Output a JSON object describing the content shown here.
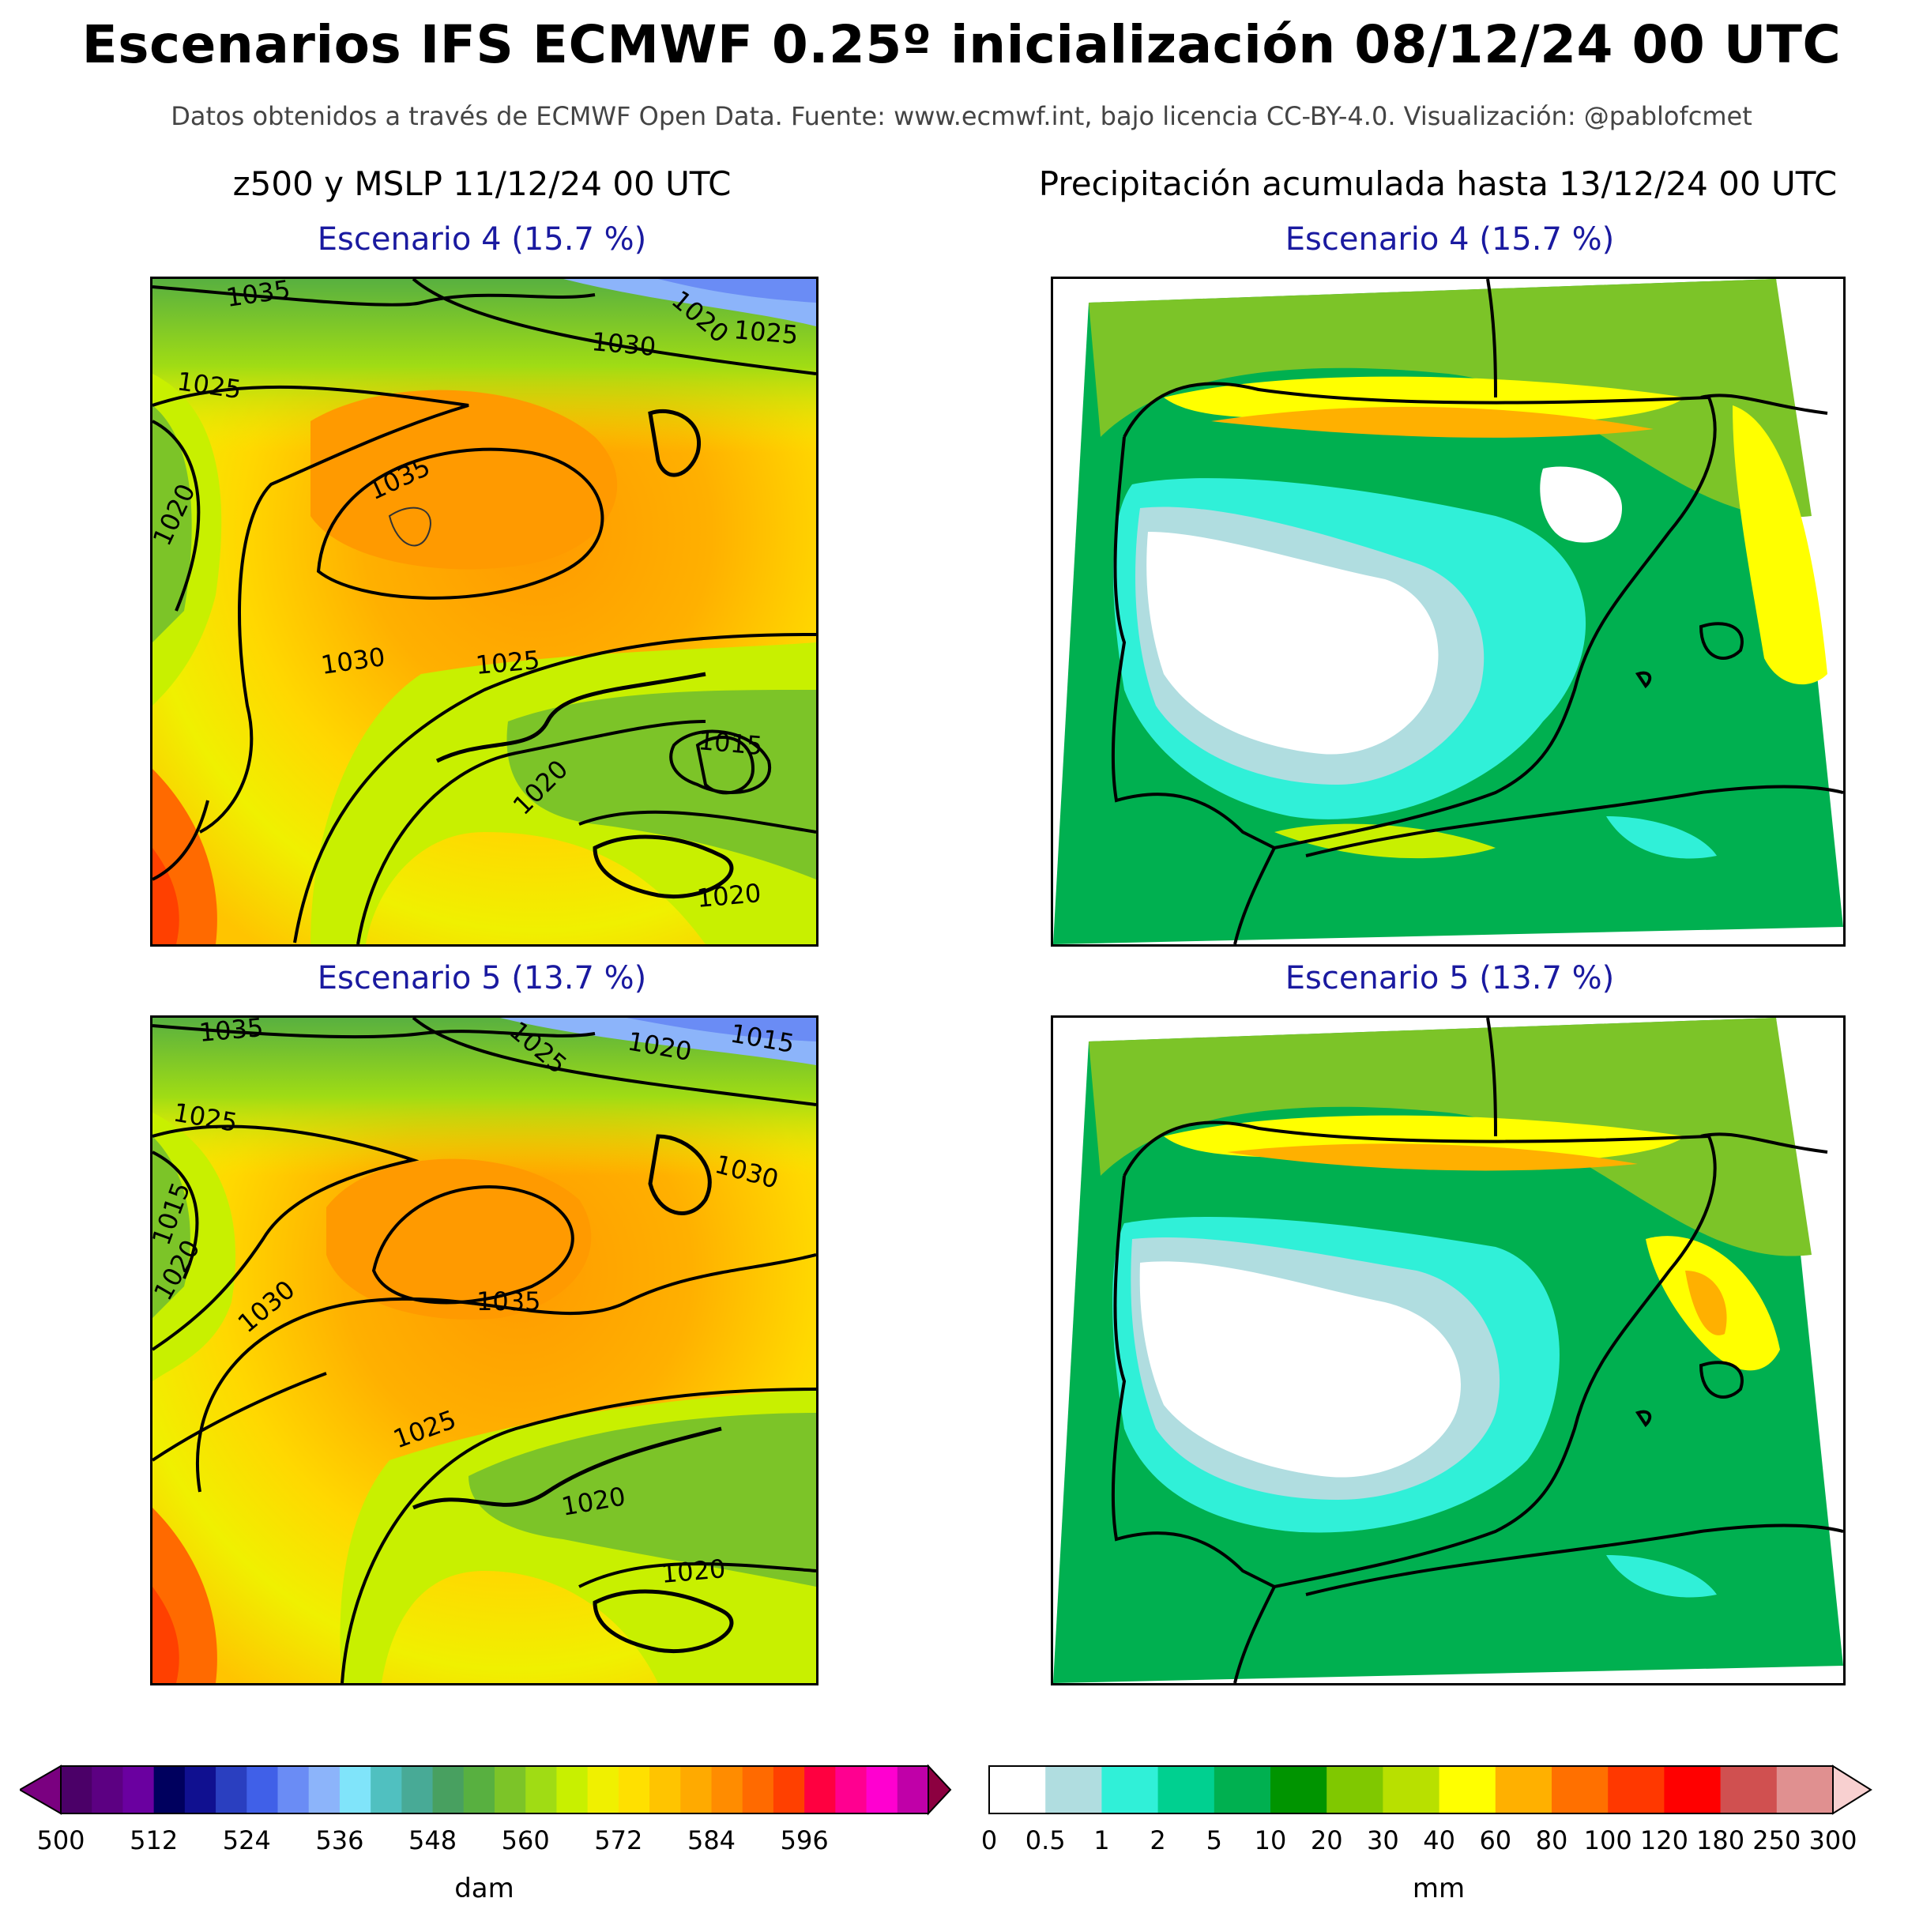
{
  "header": {
    "title": "Escenarios IFS ECMWF 0.25º inicialización 08/12/24 00 UTC",
    "subtitle": "Datos obtenidos a través de ECMWF Open Data. Fuente: www.ecmwf.int, bajo licencia CC-BY-4.0. Visualización: @pablofcmet"
  },
  "left_column": {
    "title": "z500 y MSLP 11/12/24 00 UTC",
    "scenario_4": {
      "title": "Escenario 4 (15.7 %)",
      "isobar_labels": [
        "1035",
        "1020",
        "1025",
        "1030",
        "1025",
        "1020",
        "1035",
        "1030",
        "1025",
        "1015",
        "1020",
        "1020"
      ]
    },
    "scenario_5": {
      "title": "Escenario 5 (13.7 %)",
      "isobar_labels": [
        "1035",
        "1025",
        "1020",
        "1015",
        "1025",
        "1030",
        "1015",
        "1020",
        "1030",
        "1035",
        "1025",
        "1020",
        "1020"
      ]
    }
  },
  "right_column": {
    "title": "Precipitación acumulada hasta 13/12/24 00 UTC",
    "scenario_4": {
      "title": "Escenario 4 (15.7 %)"
    },
    "scenario_5": {
      "title": "Escenario 5 (13.7 %)"
    }
  },
  "colorbar_z500": {
    "unit": "dam",
    "tick_labels": [
      "500",
      "512",
      "524",
      "536",
      "548",
      "560",
      "572",
      "584",
      "596"
    ],
    "colors": [
      "#4b0068",
      "#5c0082",
      "#6a00a0",
      "#00005e",
      "#101090",
      "#2a3fc0",
      "#4060e8",
      "#6a8cf5",
      "#8cb4fa",
      "#80e4fa",
      "#50c0c0",
      "#48aa96",
      "#48a060",
      "#58b040",
      "#7cc428",
      "#a0dc14",
      "#c8f000",
      "#f0f000",
      "#ffe000",
      "#ffc400",
      "#ffaa00",
      "#ff8c00",
      "#ff6a00",
      "#ff4000",
      "#ff0040",
      "#ff0090",
      "#ff00d0",
      "#c000a8"
    ],
    "extend_low": "#7a0080",
    "extend_high": "#8c0040"
  },
  "colorbar_precip": {
    "unit": "mm",
    "tick_labels": [
      "0",
      "0.5",
      "1",
      "2",
      "5",
      "10",
      "20",
      "30",
      "40",
      "60",
      "80",
      "100",
      "120",
      "180",
      "250",
      "300"
    ],
    "colors": [
      "#ffffff",
      "#b0dde0",
      "#30f0d8",
      "#00d090",
      "#00b050",
      "#009400",
      "#80c800",
      "#b8e000",
      "#ffff00",
      "#ffb000",
      "#ff7000",
      "#ff3800",
      "#ff0000",
      "#d05050",
      "#e09090"
    ],
    "extend_high": "#f8d0d0"
  }
}
